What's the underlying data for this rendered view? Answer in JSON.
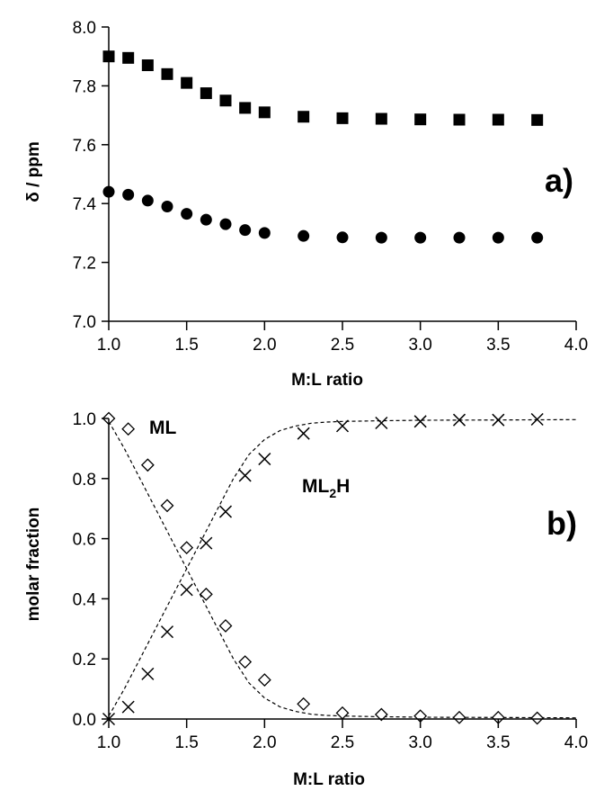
{
  "chart_data": [
    {
      "id": "panel-a",
      "type": "scatter",
      "panel_label": "a)",
      "xlabel": "M:L ratio",
      "ylabel": "δ / ppm",
      "xlim": [
        1.0,
        4.0
      ],
      "ylim": [
        7.0,
        8.0
      ],
      "xticks": [
        "1.0",
        "1.5",
        "2.0",
        "2.5",
        "3.0",
        "3.5",
        "4.0"
      ],
      "yticks": [
        "7.0",
        "7.2",
        "7.4",
        "7.6",
        "7.8",
        "8.0"
      ],
      "grid": false,
      "series": [
        {
          "marker": "square",
          "color": "#000000",
          "x": [
            1.0,
            1.125,
            1.25,
            1.375,
            1.5,
            1.625,
            1.75,
            1.875,
            2.0,
            2.25,
            2.5,
            2.75,
            3.0,
            3.25,
            3.5,
            3.75
          ],
          "y": [
            7.9,
            7.895,
            7.87,
            7.84,
            7.81,
            7.775,
            7.75,
            7.725,
            7.71,
            7.695,
            7.69,
            7.688,
            7.686,
            7.685,
            7.685,
            7.684
          ]
        },
        {
          "marker": "circle",
          "color": "#000000",
          "x": [
            1.0,
            1.125,
            1.25,
            1.375,
            1.5,
            1.625,
            1.75,
            1.875,
            2.0,
            2.25,
            2.5,
            2.75,
            3.0,
            3.25,
            3.5,
            3.75
          ],
          "y": [
            7.44,
            7.43,
            7.41,
            7.39,
            7.365,
            7.345,
            7.33,
            7.31,
            7.3,
            7.29,
            7.285,
            7.284,
            7.284,
            7.284,
            7.284,
            7.284
          ]
        }
      ]
    },
    {
      "id": "panel-b",
      "type": "scatter",
      "panel_label": "b)",
      "xlabel": "M:L ratio",
      "ylabel": "molar fraction",
      "xlim": [
        1.0,
        4.0
      ],
      "ylim": [
        0.0,
        1.0
      ],
      "xticks": [
        "1.0",
        "1.5",
        "2.0",
        "2.5",
        "3.0",
        "3.5",
        "4.0"
      ],
      "yticks": [
        "0.0",
        "0.2",
        "0.4",
        "0.6",
        "0.8",
        "1.0"
      ],
      "grid": false,
      "series": [
        {
          "name": "ML",
          "marker": "diamond-open",
          "color": "#000000",
          "x": [
            1.0,
            1.125,
            1.25,
            1.375,
            1.5,
            1.625,
            1.75,
            1.875,
            2.0,
            2.25,
            2.5,
            2.75,
            3.0,
            3.25,
            3.5,
            3.75
          ],
          "y": [
            1.0,
            0.965,
            0.845,
            0.71,
            0.57,
            0.415,
            0.31,
            0.19,
            0.13,
            0.05,
            0.02,
            0.015,
            0.01,
            0.005,
            0.005,
            0.003
          ],
          "fit": {
            "x": [
              1.0,
              1.1,
              1.2,
              1.3,
              1.4,
              1.5,
              1.6,
              1.7,
              1.8,
              1.9,
              2.0,
              2.1,
              2.2,
              2.3,
              2.4,
              2.5,
              2.7,
              3.0,
              3.5,
              4.0
            ],
            "y": [
              0.99,
              0.9,
              0.8,
              0.7,
              0.6,
              0.5,
              0.4,
              0.3,
              0.2,
              0.12,
              0.07,
              0.04,
              0.025,
              0.016,
              0.012,
              0.01,
              0.008,
              0.006,
              0.005,
              0.004
            ]
          }
        },
        {
          "name": "ML",
          "name_sub": "2",
          "name_suffix": "H",
          "marker": "cross",
          "color": "#000000",
          "x": [
            1.0,
            1.125,
            1.25,
            1.375,
            1.5,
            1.625,
            1.75,
            1.875,
            2.0,
            2.25,
            2.5,
            2.75,
            3.0,
            3.25,
            3.5,
            3.75
          ],
          "y": [
            0.0,
            0.04,
            0.15,
            0.29,
            0.43,
            0.585,
            0.69,
            0.81,
            0.865,
            0.95,
            0.975,
            0.985,
            0.99,
            0.995,
            0.995,
            0.997
          ],
          "fit": {
            "x": [
              1.0,
              1.1,
              1.2,
              1.3,
              1.4,
              1.5,
              1.6,
              1.7,
              1.8,
              1.9,
              2.0,
              2.1,
              2.2,
              2.3,
              2.4,
              2.5,
              2.7,
              3.0,
              3.5,
              4.0
            ],
            "y": [
              0.01,
              0.1,
              0.2,
              0.3,
              0.4,
              0.5,
              0.6,
              0.7,
              0.8,
              0.88,
              0.93,
              0.96,
              0.975,
              0.984,
              0.988,
              0.99,
              0.992,
              0.994,
              0.995,
              0.996
            ]
          }
        }
      ]
    }
  ]
}
